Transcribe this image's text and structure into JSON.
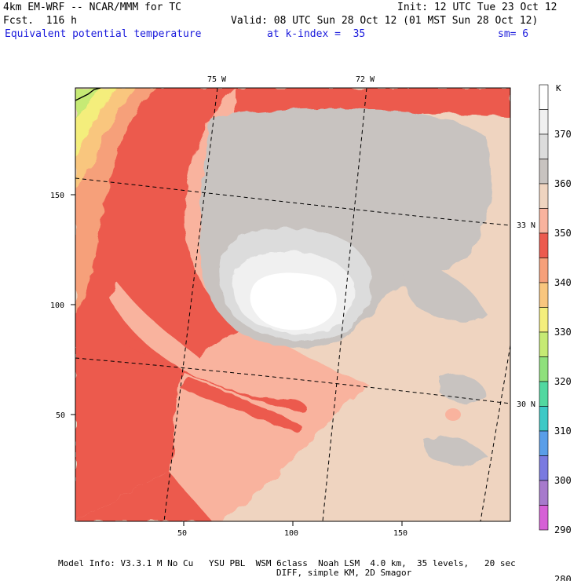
{
  "header": {
    "model_line": "4km EM-WRF -- NCAR/MMM for TC",
    "forecast": "Fcst.  116 h",
    "init": "Init: 12 UTC Tue 23 Oct 12",
    "valid": "Valid: 08 UTC Sun 28 Oct 12 (01 MST Sun 28 Oct 12)",
    "field": "Equivalent potential temperature",
    "level": "at k-index =  35",
    "smoothing": "sm= 6"
  },
  "map": {
    "x_ticks": [
      "50",
      "100",
      "150"
    ],
    "y_ticks": [
      "150",
      "100",
      "50"
    ],
    "lon_labels": [
      "75 W",
      "72 W"
    ],
    "lat_labels": [
      "33 N",
      "30 N"
    ]
  },
  "colorbar": {
    "unit": "K",
    "levels": [
      "370",
      "360",
      "350",
      "340",
      "330",
      "320",
      "310",
      "300",
      "290",
      "280"
    ],
    "colors": [
      "#ffffff",
      "#f0f0f0",
      "#dcdcdc",
      "#c8c3c0",
      "#efd4c0",
      "#f9b39e",
      "#ec5a4e",
      "#f6a07a",
      "#f9c67e",
      "#f4ee7c",
      "#c6ea74",
      "#8fe07c",
      "#52d8a0",
      "#3dc9c6",
      "#5a9ee8",
      "#7a7ae0",
      "#a77acc",
      "#d660d6"
    ]
  },
  "footer": {
    "line1": "Model Info: V3.3.1 M No Cu   YSU PBL  WSM 6class  Noah LSM  4.0 km,  35 levels,   20 sec",
    "line2": "DIFF, simple KM, 2D Smagor"
  }
}
